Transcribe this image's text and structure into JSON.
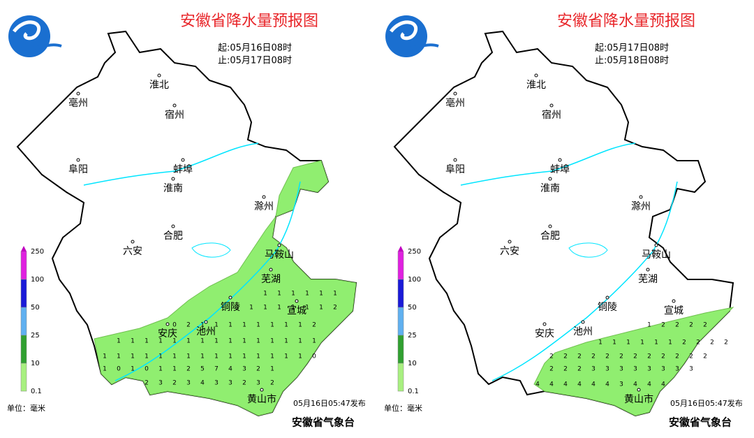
{
  "panels": [
    {
      "title": "安徽省降水量预报图",
      "start": "起:05月16日08时",
      "end": "止:05月17日08时",
      "cities": [
        "淮北",
        "亳州",
        "宿州",
        "阜阳",
        "蚌埠",
        "淮南",
        "滁州",
        "合肥",
        "六安",
        "马鞍山",
        "芜湖",
        "铜陵",
        "宣城",
        "安庆",
        "池州",
        "黄山市"
      ],
      "legend": [
        250,
        100,
        50,
        25,
        10,
        0.1
      ],
      "unit": "单位：毫米",
      "issued": "05月16日05:47发布",
      "agency": "安徽省气象台",
      "digits": [
        [
          1,
          1,
          1,
          1,
          1,
          1
        ],
        [
          1,
          1,
          1,
          1,
          1,
          1,
          1,
          2
        ],
        [
          0,
          2,
          1,
          1,
          1,
          1,
          1,
          1,
          1,
          1,
          2
        ],
        [
          1,
          1,
          1,
          1,
          1,
          1,
          1,
          1,
          1,
          1,
          1,
          1,
          1,
          1,
          1
        ],
        [
          1,
          1,
          1,
          1,
          1,
          1,
          1,
          1,
          1,
          1,
          1,
          1,
          1,
          1,
          1,
          0
        ],
        [
          1,
          0,
          1,
          0,
          1,
          1,
          2,
          5,
          7,
          4,
          3,
          2,
          1
        ],
        [
          2,
          3,
          2,
          3,
          4,
          3,
          3,
          2,
          3,
          2
        ]
      ]
    },
    {
      "title": "安徽省降水量预报图",
      "start": "起:05月17日08时",
      "end": "止:05月18日08时",
      "cities": [
        "淮北",
        "亳州",
        "宿州",
        "阜阳",
        "蚌埠",
        "淮南",
        "滁州",
        "合肥",
        "六安",
        "马鞍山",
        "芜湖",
        "铜陵",
        "宣城",
        "安庆",
        "池州",
        "黄山市"
      ],
      "legend": [
        250,
        100,
        50,
        25,
        10,
        0.1
      ],
      "unit": "单位：毫米",
      "issued": "05月16日05:47发布",
      "agency": "安徽省气象台",
      "digits": [
        [
          1,
          2,
          2,
          2,
          2
        ],
        [
          1,
          1,
          1,
          1,
          1,
          1,
          2,
          2,
          2,
          2
        ],
        [
          2,
          2,
          2,
          2,
          2,
          2,
          2,
          2,
          2,
          2,
          2,
          2
        ],
        [
          2,
          2,
          2,
          3,
          3,
          3,
          3,
          3,
          3,
          3,
          3
        ],
        [
          4,
          4,
          4,
          4,
          4,
          4,
          3,
          4,
          4,
          4
        ]
      ]
    }
  ]
}
